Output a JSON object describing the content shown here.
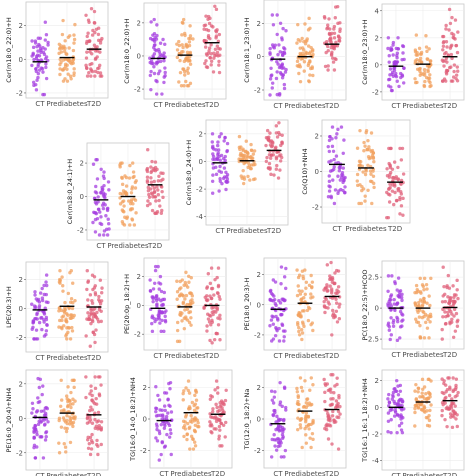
{
  "colors": {
    "CT": "#a43de0",
    "Prediabetes": "#f2a05e",
    "T2D": "#e0607a",
    "median_line": "#000000",
    "panel_border": "#c8c8c8",
    "grid": "#ececec"
  },
  "categories": [
    "CT",
    "Prediabetes",
    "T2D"
  ],
  "chart_data": [
    {
      "type": "scatter",
      "ylabel": "Cer(m18:0_22:0)+H",
      "categories": [
        "CT",
        "Prediabetes",
        "T2D"
      ],
      "yticks": [
        -2,
        0,
        2
      ],
      "ylim": [
        -2.3,
        3.4
      ],
      "series": [
        {
          "category": "CT",
          "median": -0.15,
          "min": -2.1,
          "max": 2.2
        },
        {
          "category": "Prediabetes",
          "median": 0.1,
          "min": -1.3,
          "max": 2.3
        },
        {
          "category": "T2D",
          "median": 0.6,
          "min": -1.0,
          "max": 3.0
        }
      ]
    },
    {
      "type": "scatter",
      "ylabel": "Cer(m18:0_22:0)+H",
      "categories": [
        "CT",
        "Prediabetes",
        "T2D"
      ],
      "yticks": [
        -2,
        0,
        2
      ],
      "ylim": [
        -2.6,
        3.2
      ],
      "series": [
        {
          "category": "CT",
          "median": -0.15,
          "min": -2.3,
          "max": 2.2
        },
        {
          "category": "Prediabetes",
          "median": 0.05,
          "min": -1.8,
          "max": 2.2
        },
        {
          "category": "T2D",
          "median": 0.8,
          "min": -1.0,
          "max": 3.0
        }
      ]
    },
    {
      "type": "scatter",
      "ylabel": "Cer(m18:1_23:0)+H",
      "categories": [
        "CT",
        "Prediabetes",
        "T2D"
      ],
      "yticks": [
        -2,
        0,
        2
      ],
      "ylim": [
        -2.6,
        3.4
      ],
      "series": [
        {
          "category": "CT",
          "median": -0.15,
          "min": -2.3,
          "max": 2.5
        },
        {
          "category": "Prediabetes",
          "median": 0.0,
          "min": -1.5,
          "max": 2.3
        },
        {
          "category": "T2D",
          "median": 0.75,
          "min": -0.8,
          "max": 3.0
        }
      ]
    },
    {
      "type": "scatter",
      "ylabel": "Cer(m18:0_23:0)+H",
      "categories": [
        "CT",
        "Prediabetes",
        "T2D"
      ],
      "yticks": [
        -2,
        0,
        2,
        4
      ],
      "ylim": [
        -2.6,
        4.5
      ],
      "series": [
        {
          "category": "CT",
          "median": -0.1,
          "min": -1.9,
          "max": 2.0
        },
        {
          "category": "Prediabetes",
          "median": 0.05,
          "min": -1.6,
          "max": 2.2
        },
        {
          "category": "T2D",
          "median": 0.6,
          "min": -1.2,
          "max": 4.1
        }
      ]
    },
    {
      "type": "scatter",
      "ylabel": "Cer(m18:0_24:1)+H",
      "categories": [
        "CT",
        "Prediabetes",
        "T2D"
      ],
      "yticks": [
        -2,
        0,
        2
      ],
      "ylim": [
        -2.6,
        3.2
      ],
      "series": [
        {
          "category": "CT",
          "median": -0.2,
          "min": -2.3,
          "max": 2.2
        },
        {
          "category": "Prediabetes",
          "median": 0.0,
          "min": -1.7,
          "max": 2.0
        },
        {
          "category": "T2D",
          "median": 0.7,
          "min": -1.0,
          "max": 2.8
        }
      ]
    },
    {
      "type": "scatter",
      "ylabel": "Cer(m18:0_24:0)+H",
      "categories": [
        "CT",
        "Prediabetes",
        "T2D"
      ],
      "yticks": [
        -4,
        -2,
        0,
        2
      ],
      "ylim": [
        -4.6,
        3.0
      ],
      "series": [
        {
          "category": "CT",
          "median": -0.1,
          "min": -2.3,
          "max": 2.0
        },
        {
          "category": "Prediabetes",
          "median": 0.05,
          "min": -1.6,
          "max": 1.8
        },
        {
          "category": "T2D",
          "median": 0.8,
          "min": -1.2,
          "max": 2.8
        }
      ]
    },
    {
      "type": "scatter",
      "ylabel": "Co(Q10)+NH4",
      "categories": [
        "CT",
        "Prediabetes",
        "T2D"
      ],
      "yticks": [
        -2,
        0,
        2
      ],
      "ylim": [
        -2.9,
        2.9
      ],
      "series": [
        {
          "category": "CT",
          "median": 0.4,
          "min": -1.8,
          "max": 2.5
        },
        {
          "category": "Prediabetes",
          "median": 0.2,
          "min": -1.8,
          "max": 2.3
        },
        {
          "category": "T2D",
          "median": -0.6,
          "min": -2.6,
          "max": 1.3
        }
      ]
    },
    {
      "type": "scatter",
      "ylabel": "LPE(20:3)+H",
      "categories": [
        "CT",
        "Prediabetes",
        "T2D"
      ],
      "yticks": [
        -2,
        0,
        2
      ],
      "ylim": [
        -3.0,
        3.2
      ],
      "series": [
        {
          "category": "CT",
          "median": -0.1,
          "min": -2.1,
          "max": 2.3
        },
        {
          "category": "Prediabetes",
          "median": 0.15,
          "min": -2.1,
          "max": 2.6
        },
        {
          "category": "T2D",
          "median": 0.1,
          "min": -2.6,
          "max": 2.6
        }
      ]
    },
    {
      "type": "scatter",
      "ylabel": "PE(20:0p_18:2)+H",
      "categories": [
        "CT",
        "Prediabetes",
        "T2D"
      ],
      "yticks": [
        -2,
        0,
        2
      ],
      "ylim": [
        -3.1,
        3.3
      ],
      "series": [
        {
          "category": "CT",
          "median": -0.2,
          "min": -1.8,
          "max": 2.7
        },
        {
          "category": "Prediabetes",
          "median": -0.1,
          "min": -2.5,
          "max": 2.3
        },
        {
          "category": "T2D",
          "median": 0.0,
          "min": -2.6,
          "max": 2.6
        }
      ]
    },
    {
      "type": "scatter",
      "ylabel": "PE(18:0_20:3)-H",
      "categories": [
        "CT",
        "Prediabetes",
        "T2D"
      ],
      "yticks": [
        -2,
        0,
        2
      ],
      "ylim": [
        -3.0,
        3.1
      ],
      "series": [
        {
          "category": "CT",
          "median": -0.3,
          "min": -2.4,
          "max": 2.5
        },
        {
          "category": "Prediabetes",
          "median": 0.1,
          "min": -2.3,
          "max": 2.3
        },
        {
          "category": "T2D",
          "median": 0.55,
          "min": -2.0,
          "max": 2.8
        }
      ]
    },
    {
      "type": "scatter",
      "ylabel": "PC(18:0_22:5)+HCOO",
      "categories": [
        "CT",
        "Prediabetes",
        "T2D"
      ],
      "yticks": [
        -2.5,
        0.0,
        2.5
      ],
      "ylim": [
        -3.3,
        3.8
      ],
      "series": [
        {
          "category": "CT",
          "median": 0.0,
          "min": -2.6,
          "max": 2.6
        },
        {
          "category": "Prediabetes",
          "median": 0.0,
          "min": -2.4,
          "max": 2.4
        },
        {
          "category": "T2D",
          "median": 0.05,
          "min": -2.5,
          "max": 3.3
        }
      ]
    },
    {
      "type": "scatter",
      "ylabel": "PE(16:0_20:4)+NH4",
      "categories": [
        "CT",
        "Prediabetes",
        "T2D"
      ],
      "yticks": [
        -2,
        0,
        2
      ],
      "ylim": [
        -3.0,
        2.8
      ],
      "series": [
        {
          "category": "CT",
          "median": 0.05,
          "min": -2.3,
          "max": 2.3
        },
        {
          "category": "Prediabetes",
          "median": 0.3,
          "min": -2.0,
          "max": 2.2
        },
        {
          "category": "T2D",
          "median": 0.2,
          "min": -2.1,
          "max": 2.4
        }
      ]
    },
    {
      "type": "scatter",
      "ylabel": "TG(16:0_14:0_18:2)+NH4",
      "categories": [
        "CT",
        "Prediabetes",
        "T2D"
      ],
      "yticks": [
        -2,
        0,
        2
      ],
      "ylim": [
        -3.1,
        3.1
      ],
      "series": [
        {
          "category": "CT",
          "median": -0.1,
          "min": -2.6,
          "max": 2.3
        },
        {
          "category": "Prediabetes",
          "median": 0.4,
          "min": -1.9,
          "max": 2.4
        },
        {
          "category": "T2D",
          "median": 0.3,
          "min": -1.7,
          "max": 2.4
        }
      ]
    },
    {
      "type": "scatter",
      "ylabel": "TG(12:0_18:2)+Na",
      "categories": [
        "CT",
        "Prediabetes",
        "T2D"
      ],
      "yticks": [
        -2,
        0,
        2
      ],
      "ylim": [
        -3.1,
        3.1
      ],
      "series": [
        {
          "category": "CT",
          "median": -0.3,
          "min": -2.4,
          "max": 2.3
        },
        {
          "category": "Prediabetes",
          "median": 0.5,
          "min": -1.8,
          "max": 2.6
        },
        {
          "category": "T2D",
          "median": 0.6,
          "min": -1.9,
          "max": 2.8
        }
      ]
    },
    {
      "type": "scatter",
      "ylabel": "TG(16:1_16:1_18:2)+NH4",
      "categories": [
        "CT",
        "Prediabetes",
        "T2D"
      ],
      "yticks": [
        -4,
        -2,
        0,
        2
      ],
      "ylim": [
        -4.7,
        2.8
      ],
      "series": [
        {
          "category": "CT",
          "median": 0.0,
          "min": -1.9,
          "max": 2.0
        },
        {
          "category": "Prediabetes",
          "median": 0.4,
          "min": -1.4,
          "max": 2.1
        },
        {
          "category": "T2D",
          "median": 0.5,
          "min": -1.5,
          "max": 2.2
        }
      ]
    }
  ]
}
